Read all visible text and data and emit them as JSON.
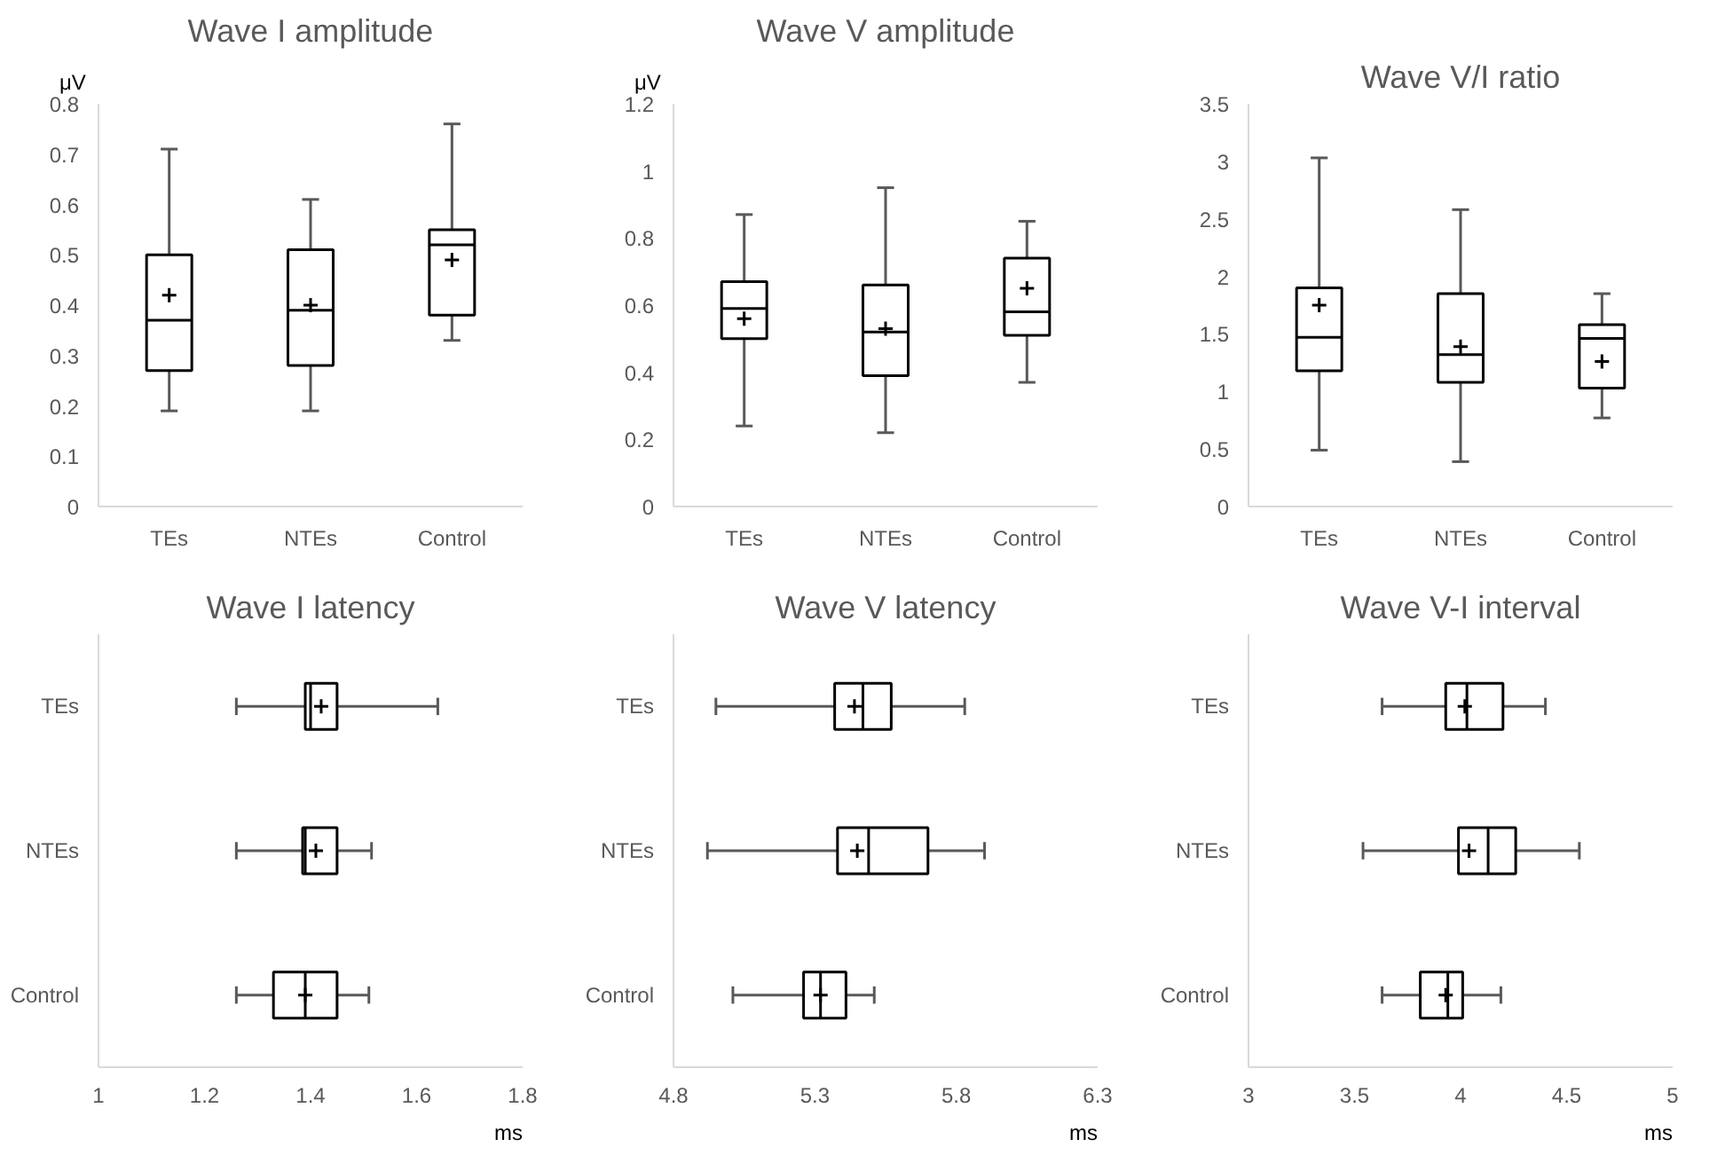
{
  "chart_data": [
    {
      "type": "box",
      "title": "Wave I amplitude",
      "ylabel": "μV",
      "categories": [
        "TEs",
        "NTEs",
        "Control"
      ],
      "ylim": [
        0,
        0.8
      ],
      "yticks": [
        0,
        0.1,
        0.2,
        0.3,
        0.4,
        0.5,
        0.6,
        0.7,
        0.8
      ],
      "boxes": [
        {
          "low": 0.19,
          "q1": 0.27,
          "median": 0.37,
          "q3": 0.5,
          "high": 0.71,
          "mean": 0.42
        },
        {
          "low": 0.19,
          "q1": 0.28,
          "median": 0.39,
          "q3": 0.51,
          "high": 0.61,
          "mean": 0.4
        },
        {
          "low": 0.33,
          "q1": 0.38,
          "median": 0.52,
          "q3": 0.55,
          "high": 0.76,
          "mean": 0.49
        }
      ]
    },
    {
      "type": "box",
      "title": "Wave V amplitude",
      "ylabel": "μV",
      "categories": [
        "TEs",
        "NTEs",
        "Control"
      ],
      "ylim": [
        0,
        1.2
      ],
      "yticks": [
        0,
        0.2,
        0.4,
        0.6,
        0.8,
        1,
        1.2
      ],
      "boxes": [
        {
          "low": 0.24,
          "q1": 0.5,
          "median": 0.59,
          "q3": 0.67,
          "high": 0.87,
          "mean": 0.56
        },
        {
          "low": 0.22,
          "q1": 0.39,
          "median": 0.52,
          "q3": 0.66,
          "high": 0.95,
          "mean": 0.53
        },
        {
          "low": 0.37,
          "q1": 0.51,
          "median": 0.58,
          "q3": 0.74,
          "high": 0.85,
          "mean": 0.65
        }
      ]
    },
    {
      "type": "box",
      "title": "Wave V/I ratio",
      "categories": [
        "TEs",
        "NTEs",
        "Control"
      ],
      "ylim": [
        0,
        3.5
      ],
      "yticks": [
        0,
        0.5,
        1,
        1.5,
        2,
        2.5,
        3,
        3.5
      ],
      "boxes": [
        {
          "low": 0.49,
          "q1": 1.18,
          "median": 1.47,
          "q3": 1.9,
          "high": 3.03,
          "mean": 1.75
        },
        {
          "low": 0.39,
          "q1": 1.08,
          "median": 1.32,
          "q3": 1.85,
          "high": 2.58,
          "mean": 1.39
        },
        {
          "low": 0.77,
          "q1": 1.03,
          "median": 1.46,
          "q3": 1.58,
          "high": 1.85,
          "mean": 1.26
        }
      ]
    },
    {
      "type": "box",
      "orientation": "horizontal",
      "title": "Wave I latency",
      "xlabel": "ms",
      "categories": [
        "TEs",
        "NTEs",
        "Control"
      ],
      "xlim": [
        1,
        1.8
      ],
      "xticks": [
        1,
        1.2,
        1.4,
        1.6,
        1.8
      ],
      "boxes": [
        {
          "low": 1.26,
          "q1": 1.39,
          "median": 1.4,
          "q3": 1.45,
          "high": 1.64,
          "mean": 1.42
        },
        {
          "low": 1.26,
          "q1": 1.385,
          "median": 1.39,
          "q3": 1.45,
          "high": 1.515,
          "mean": 1.41
        },
        {
          "low": 1.26,
          "q1": 1.33,
          "median": 1.39,
          "q3": 1.45,
          "high": 1.51,
          "mean": 1.39
        }
      ]
    },
    {
      "type": "box",
      "orientation": "horizontal",
      "title": "Wave V latency",
      "xlabel": "ms",
      "categories": [
        "TEs",
        "NTEs",
        "Control"
      ],
      "xlim": [
        4.8,
        6.3
      ],
      "xticks": [
        4.8,
        5.3,
        5.8,
        6.3
      ],
      "boxes": [
        {
          "low": 4.95,
          "q1": 5.37,
          "median": 5.47,
          "q3": 5.57,
          "high": 5.83,
          "mean": 5.44
        },
        {
          "low": 4.92,
          "q1": 5.38,
          "median": 5.49,
          "q3": 5.7,
          "high": 5.9,
          "mean": 5.45
        },
        {
          "low": 5.01,
          "q1": 5.26,
          "median": 5.32,
          "q3": 5.41,
          "high": 5.51,
          "mean": 5.32
        }
      ]
    },
    {
      "type": "box",
      "orientation": "horizontal",
      "title": "Wave V-I interval",
      "xlabel": "ms",
      "categories": [
        "TEs",
        "NTEs",
        "Control"
      ],
      "xlim": [
        3,
        5
      ],
      "xticks": [
        3,
        3.5,
        4,
        4.5,
        5
      ],
      "boxes": [
        {
          "low": 3.63,
          "q1": 3.93,
          "median": 4.03,
          "q3": 4.2,
          "high": 4.4,
          "mean": 4.02
        },
        {
          "low": 3.54,
          "q1": 3.99,
          "median": 4.13,
          "q3": 4.26,
          "high": 4.56,
          "mean": 4.04
        },
        {
          "low": 3.63,
          "q1": 3.81,
          "median": 3.94,
          "q3": 4.01,
          "high": 4.19,
          "mean": 3.93
        }
      ]
    }
  ]
}
